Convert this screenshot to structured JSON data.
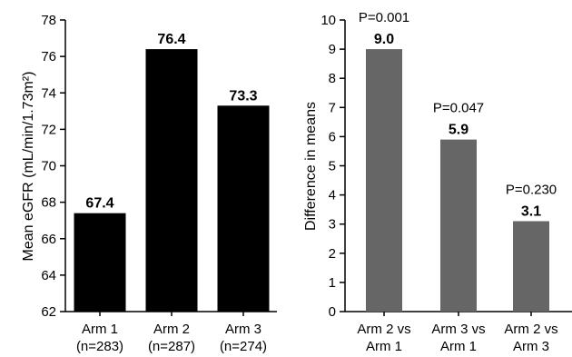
{
  "chart_data": [
    {
      "type": "bar",
      "title": "",
      "xlabel": "",
      "ylabel": "Mean eGFR (mL/min/1.73m²)",
      "ylim": [
        62,
        78
      ],
      "yticks": [
        62,
        64,
        66,
        68,
        70,
        72,
        74,
        76,
        78
      ],
      "categories": [
        [
          "Arm 1",
          "(n=283)"
        ],
        [
          "Arm 2",
          "(n=287)"
        ],
        [
          "Arm 3",
          "(n=274)"
        ]
      ],
      "values": [
        67.4,
        76.4,
        73.3
      ],
      "value_labels": [
        "67.4",
        "76.4",
        "73.3"
      ],
      "bar_color": "#000000",
      "grid": false,
      "legend": "none"
    },
    {
      "type": "bar",
      "title": "",
      "xlabel": "",
      "ylabel": "Difference in means",
      "ylim": [
        0,
        10
      ],
      "yticks": [
        0,
        1,
        2,
        3,
        4,
        5,
        6,
        7,
        8,
        9,
        10
      ],
      "categories": [
        [
          "Arm 2 vs",
          "Arm 1"
        ],
        [
          "Arm 3 vs",
          "Arm 1"
        ],
        [
          "Arm 2 vs",
          "Arm 3"
        ]
      ],
      "values": [
        9.0,
        5.9,
        3.1
      ],
      "value_labels": [
        "9.0",
        "5.9",
        "3.1"
      ],
      "annotations": [
        "P=0.001",
        "P=0.047",
        "P=0.230"
      ],
      "bar_color": "#666666",
      "grid": false,
      "legend": "none"
    }
  ]
}
